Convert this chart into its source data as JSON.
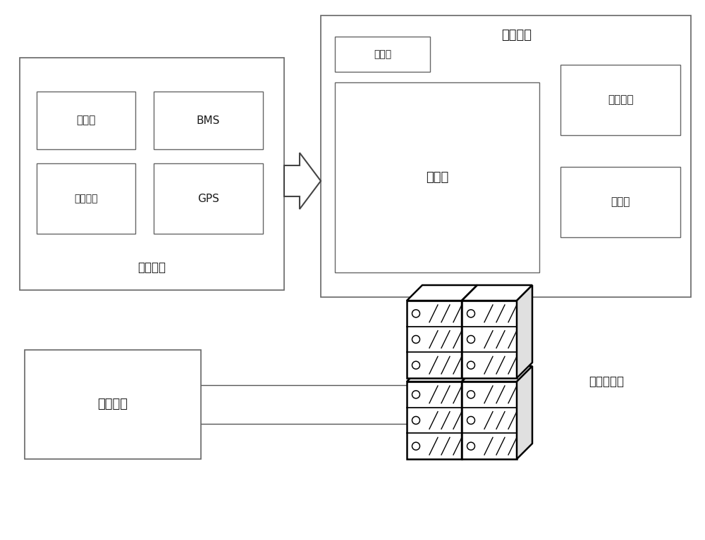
{
  "bg_color": "#ffffff",
  "line_color": "#555555",
  "box_edge_color": "#666666",
  "text_color": "#1a1a1a",
  "title": "助力单车",
  "smart_battery_label": "智能电池",
  "qr_label": "二维码",
  "bms_label": "BMS",
  "output_label": "输出接口",
  "gps_label": "GPS",
  "battery_bin_label": "电池仓",
  "vehicle_control_label": "车载中控",
  "anti_theft_label": "防盗锁",
  "mobile_label": "移动终端",
  "cloud_label": "云端服务器",
  "qr_bike_label": "二维码"
}
